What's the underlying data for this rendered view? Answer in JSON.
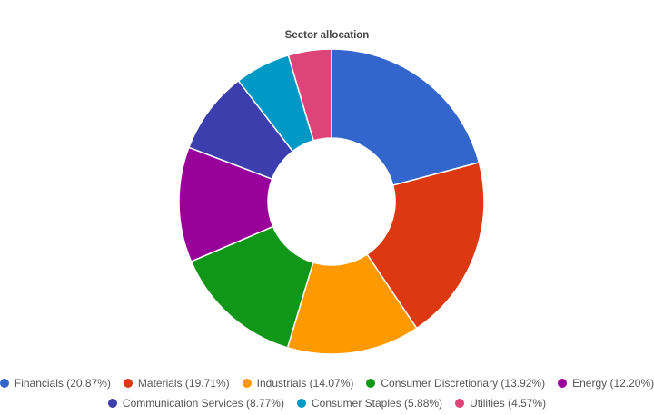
{
  "chart_data": {
    "type": "pie",
    "variant": "donut",
    "title": "Sector allocation",
    "legend_position": "bottom",
    "slices": [
      {
        "label": "Financials",
        "value": 20.87,
        "value_label": "20.87%",
        "color": "#3366cc"
      },
      {
        "label": "Materials",
        "value": 19.71,
        "value_label": "19.71%",
        "color": "#dc3912"
      },
      {
        "label": "Industrials",
        "value": 14.07,
        "value_label": "14.07%",
        "color": "#ff9900"
      },
      {
        "label": "Consumer Discretionary",
        "value": 13.92,
        "value_label": "13.92%",
        "color": "#109618"
      },
      {
        "label": "Energy",
        "value": 12.2,
        "value_label": "12.20%",
        "color": "#990099"
      },
      {
        "label": "Communication Services",
        "value": 8.77,
        "value_label": "8.77%",
        "color": "#3b3eac"
      },
      {
        "label": "Consumer Staples",
        "value": 5.88,
        "value_label": "5.88%",
        "color": "#0099c6"
      },
      {
        "label": "Utilities",
        "value": 4.57,
        "value_label": "4.57%",
        "color": "#dd4477"
      }
    ]
  }
}
